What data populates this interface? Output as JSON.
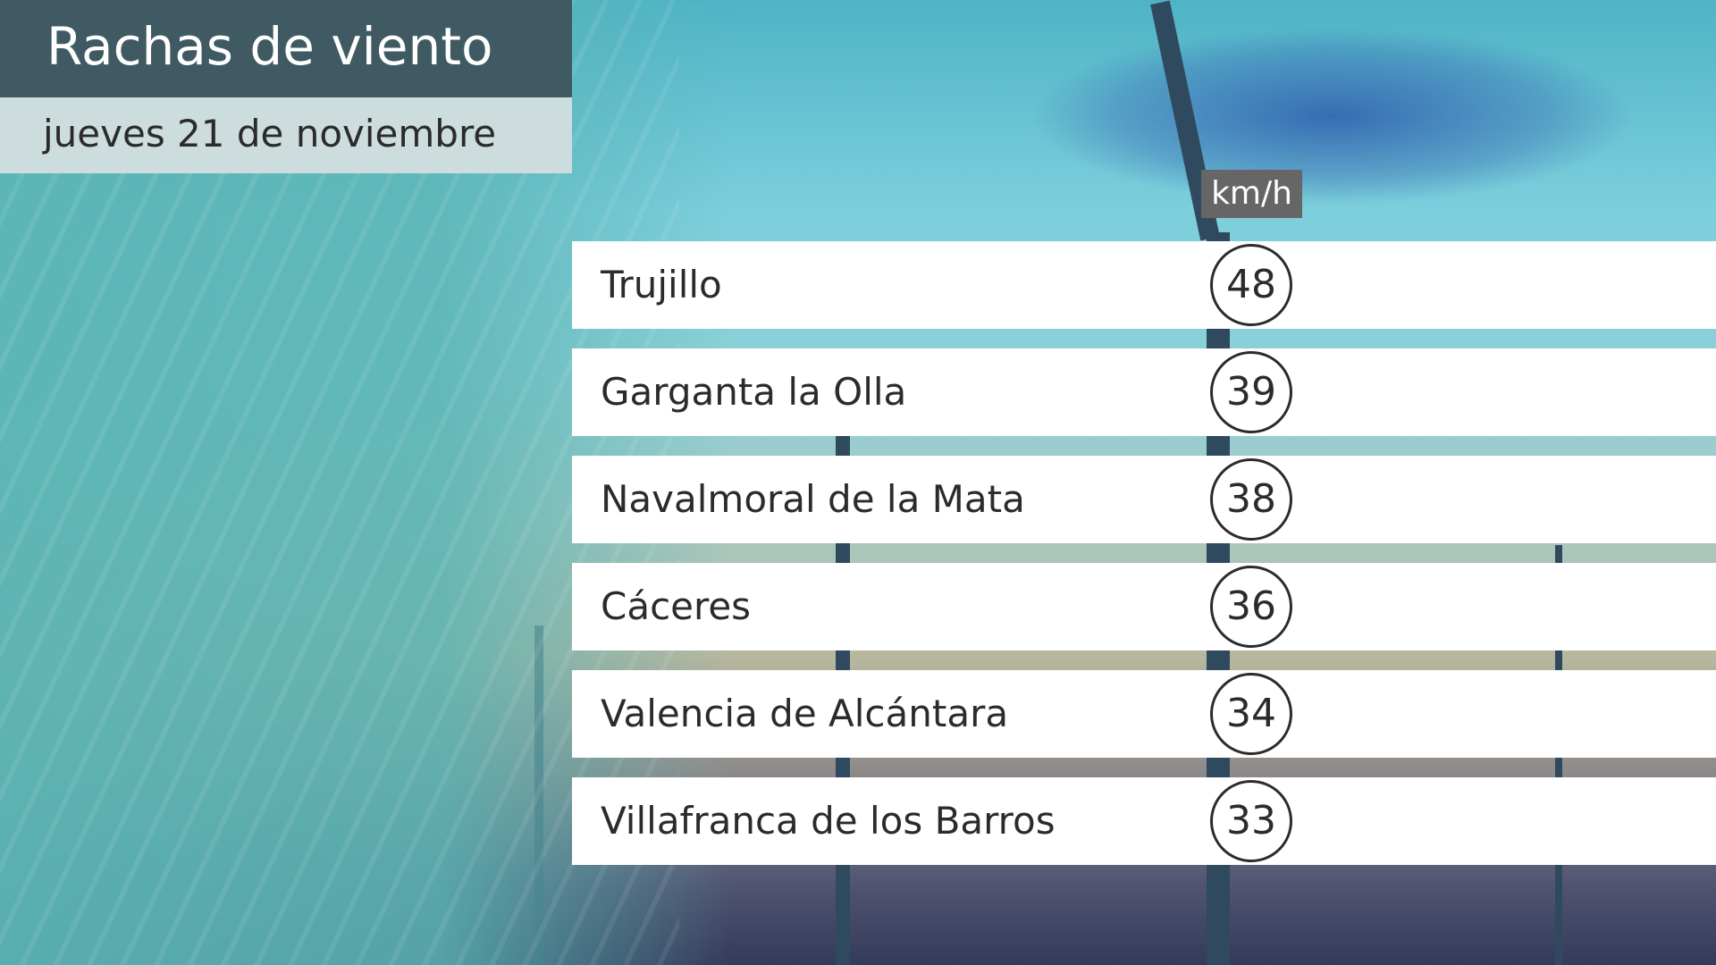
{
  "header": {
    "title": "Rachas de viento",
    "date": "jueves 21 de noviembre"
  },
  "unit": "km/h",
  "rows": [
    {
      "location": "Trujillo",
      "value": "48"
    },
    {
      "location": "Garganta la Olla",
      "value": "39"
    },
    {
      "location": "Navalmoral de la Mata",
      "value": "38"
    },
    {
      "location": "Cáceres",
      "value": "36"
    },
    {
      "location": "Valencia de Alcántara",
      "value": "34"
    },
    {
      "location": "Villafranca de los Barros",
      "value": "33"
    }
  ]
}
